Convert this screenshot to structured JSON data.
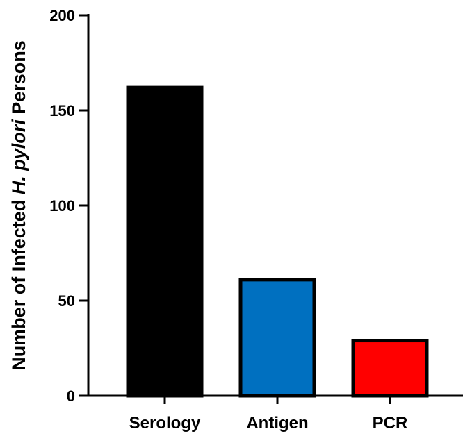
{
  "chart_data": {
    "type": "bar",
    "categories": [
      "Serology",
      "Antigen",
      "PCR"
    ],
    "values": [
      162,
      61,
      29
    ],
    "colors": [
      "#000000",
      "#0070c0",
      "#ff0000"
    ],
    "bar_edge_color": "#000000",
    "ylabel": {
      "before": "Number of Infected ",
      "italic": "H. pylori",
      "after": " Persons"
    },
    "xlabel": "",
    "ylim": [
      0,
      200
    ],
    "yticks": [
      0,
      50,
      100,
      150,
      200
    ],
    "ytick_labels": [
      "0",
      "50",
      "100",
      "150",
      "200"
    ],
    "grid": false,
    "legend": "none"
  }
}
